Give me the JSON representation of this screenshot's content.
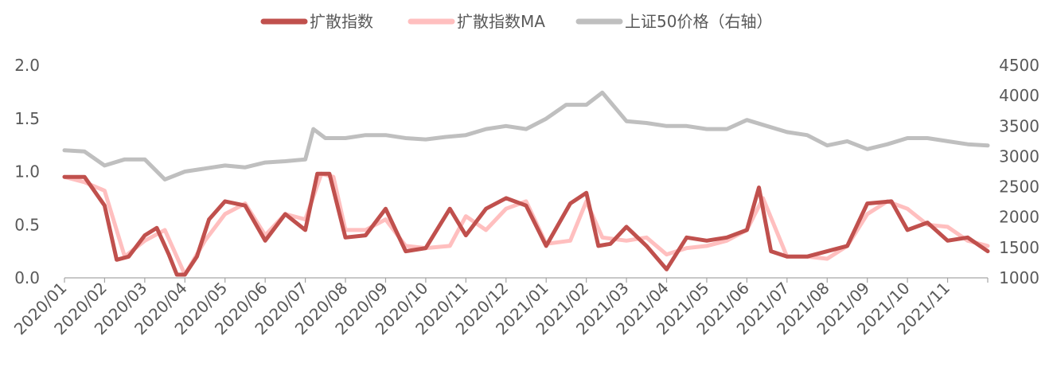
{
  "chart_data": {
    "type": "line",
    "title": "",
    "legend": {
      "placement": "top-center",
      "entries": [
        "扩散指数",
        "扩散指数MA",
        "上证50价格（右轴）"
      ]
    },
    "x_tick_labels": [
      "2020/01",
      "2020/02",
      "2020/03",
      "2020/04",
      "2020/05",
      "2020/06",
      "2020/07",
      "2020/08",
      "2020/09",
      "2020/10",
      "2020/11",
      "2020/12",
      "2021/01",
      "2021/02",
      "2021/03",
      "2021/04",
      "2021/05",
      "2021/06",
      "2021/07",
      "2021/08",
      "2021/09",
      "2021/10",
      "2021/11"
    ],
    "x_range": [
      "2020/01",
      "2021/12"
    ],
    "y_left": {
      "range": [
        0,
        2
      ],
      "tick_labels": [
        "0.0",
        "0.5",
        "1.0",
        "1.5",
        "2.0"
      ],
      "ticks": [
        0,
        0.5,
        1.0,
        1.5,
        2.0
      ]
    },
    "y_right": {
      "range": [
        1000,
        4500
      ],
      "tick_labels": [
        "1000",
        "1500",
        "2000",
        "2500",
        "3000",
        "3500",
        "4000",
        "4500"
      ],
      "ticks": [
        1000,
        1500,
        2000,
        2500,
        3000,
        3500,
        4000,
        4500
      ]
    },
    "grid": false,
    "series": [
      {
        "name": "扩散指数",
        "axis": "left",
        "color": "#c0504d",
        "x": [
          "2020/01",
          "2020/01.5",
          "2020/02",
          "2020/02.3",
          "2020/02.6",
          "2020/03",
          "2020/03.3",
          "2020/03.6",
          "2020/03.8",
          "2020/04",
          "2020/04.3",
          "2020/04.6",
          "2020/05",
          "2020/05.5",
          "2020/06",
          "2020/06.5",
          "2020/07",
          "2020/07.3",
          "2020/07.6",
          "2020/08",
          "2020/08.5",
          "2020/09",
          "2020/09.5",
          "2020/10",
          "2020/10.6",
          "2020/11",
          "2020/11.5",
          "2020/12",
          "2020/12.5",
          "2021/01",
          "2021/01.6",
          "2021/02",
          "2021/02.3",
          "2021/02.6",
          "2021/03",
          "2021/03.5",
          "2021/04",
          "2021/04.5",
          "2021/05",
          "2021/05.5",
          "2021/06",
          "2021/06.3",
          "2021/06.6",
          "2021/07",
          "2021/07.5",
          "2021/08",
          "2021/08.5",
          "2021/09",
          "2021/09.6",
          "2021/10",
          "2021/10.5",
          "2021/11",
          "2021/11.5",
          "2021/12"
        ],
        "values": [
          0.95,
          0.95,
          0.68,
          0.17,
          0.2,
          0.4,
          0.47,
          0.22,
          0.03,
          0.03,
          0.2,
          0.55,
          0.72,
          0.68,
          0.35,
          0.6,
          0.45,
          0.98,
          0.98,
          0.38,
          0.4,
          0.65,
          0.25,
          0.28,
          0.65,
          0.4,
          0.65,
          0.75,
          0.68,
          0.3,
          0.7,
          0.8,
          0.3,
          0.32,
          0.48,
          0.3,
          0.08,
          0.38,
          0.35,
          0.38,
          0.45,
          0.85,
          0.25,
          0.2,
          0.2,
          0.25,
          0.3,
          0.7,
          0.72,
          0.45,
          0.52,
          0.35,
          0.38,
          0.25
        ]
      },
      {
        "name": "扩散指数MA",
        "axis": "left",
        "color": "#ffbfbf",
        "x": [
          "2020/01",
          "2020/01.5",
          "2020/02",
          "2020/02.5",
          "2020/03",
          "2020/03.5",
          "2020/04",
          "2020/04.5",
          "2020/05",
          "2020/05.5",
          "2020/06",
          "2020/06.5",
          "2020/07",
          "2020/07.4",
          "2020/07.7",
          "2020/08",
          "2020/08.5",
          "2020/09",
          "2020/09.5",
          "2020/10",
          "2020/10.6",
          "2020/11",
          "2020/11.5",
          "2020/12",
          "2020/12.5",
          "2021/01",
          "2021/01.6",
          "2021/02",
          "2021/02.4",
          "2021/03",
          "2021/03.5",
          "2021/04",
          "2021/04.5",
          "2021/05",
          "2021/05.5",
          "2021/06",
          "2021/06.4",
          "2021/07",
          "2021/07.5",
          "2021/08",
          "2021/08.5",
          "2021/09",
          "2021/09.5",
          "2021/10",
          "2021/10.5",
          "2021/11",
          "2021/11.5",
          "2021/12"
        ],
        "values": [
          0.95,
          0.9,
          0.82,
          0.2,
          0.35,
          0.45,
          0.03,
          0.35,
          0.6,
          0.7,
          0.4,
          0.6,
          0.55,
          0.98,
          0.95,
          0.45,
          0.45,
          0.55,
          0.3,
          0.28,
          0.3,
          0.58,
          0.45,
          0.65,
          0.72,
          0.32,
          0.35,
          0.72,
          0.38,
          0.35,
          0.38,
          0.22,
          0.28,
          0.3,
          0.35,
          0.45,
          0.75,
          0.2,
          0.2,
          0.18,
          0.3,
          0.6,
          0.72,
          0.65,
          0.5,
          0.48,
          0.35,
          0.3
        ]
      },
      {
        "name": "上证50价格（右轴）",
        "axis": "right",
        "color": "#bfbfbf",
        "x": [
          "2020/01",
          "2020/01.5",
          "2020/02",
          "2020/02.5",
          "2020/03",
          "2020/03.5",
          "2020/04",
          "2020/04.5",
          "2020/05",
          "2020/05.5",
          "2020/06",
          "2020/06.5",
          "2020/07",
          "2020/07.2",
          "2020/07.5",
          "2020/08",
          "2020/08.5",
          "2020/09",
          "2020/09.5",
          "2020/10",
          "2020/10.5",
          "2020/11",
          "2020/11.5",
          "2020/12",
          "2020/12.5",
          "2021/01",
          "2021/01.5",
          "2021/02",
          "2021/02.4",
          "2021/03",
          "2021/03.5",
          "2021/04",
          "2021/04.5",
          "2021/05",
          "2021/05.5",
          "2021/06",
          "2021/06.5",
          "2021/07",
          "2021/07.5",
          "2021/08",
          "2021/08.5",
          "2021/09",
          "2021/09.5",
          "2021/10",
          "2021/10.5",
          "2021/11",
          "2021/11.5",
          "2021/12"
        ],
        "values": [
          3100,
          3080,
          2850,
          2950,
          2950,
          2620,
          2750,
          2800,
          2850,
          2820,
          2900,
          2920,
          2950,
          3450,
          3300,
          3300,
          3350,
          3350,
          3300,
          3280,
          3320,
          3350,
          3450,
          3500,
          3450,
          3620,
          3850,
          3850,
          4050,
          3580,
          3550,
          3500,
          3500,
          3450,
          3450,
          3600,
          3500,
          3400,
          3350,
          3180,
          3250,
          3120,
          3200,
          3300,
          3300,
          3250,
          3200,
          3180
        ]
      }
    ]
  }
}
